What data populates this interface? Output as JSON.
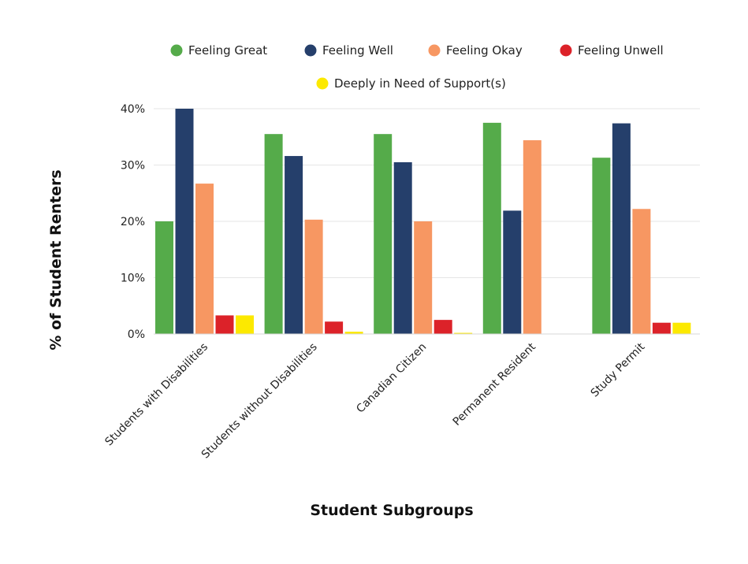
{
  "chart_data": {
    "type": "bar",
    "title": "",
    "xlabel": "Student Subgroups",
    "ylabel": "% of Student Renters",
    "ylim": [
      0,
      40
    ],
    "yticks": [
      0,
      10,
      20,
      30,
      40
    ],
    "ytick_labels": [
      "0%",
      "10%",
      "20%",
      "30%",
      "40%"
    ],
    "grid": true,
    "legend_position": "top-center",
    "categories": [
      "Students with Disabilities",
      "Students without Disabilities",
      "Canadian Citizen",
      "Permanent Resident",
      "Study Permit"
    ],
    "series": [
      {
        "name": "Feeling Great",
        "color": "#55ab4a",
        "values": [
          20.0,
          35.5,
          35.5,
          37.5,
          31.3
        ]
      },
      {
        "name": "Feeling Well",
        "color": "#253f6b",
        "values": [
          40.0,
          31.6,
          30.5,
          21.9,
          37.4
        ]
      },
      {
        "name": "Feeling Okay",
        "color": "#f79762",
        "values": [
          26.7,
          20.3,
          20.0,
          34.4,
          22.2
        ]
      },
      {
        "name": "Feeling Unwell",
        "color": "#dc2229",
        "values": [
          3.3,
          2.2,
          2.5,
          0.0,
          2.0
        ]
      },
      {
        "name": "Deeply in Need of Support(s)",
        "color": "#fce900",
        "values": [
          3.3,
          0.4,
          0.2,
          0.0,
          2.0
        ]
      }
    ]
  }
}
